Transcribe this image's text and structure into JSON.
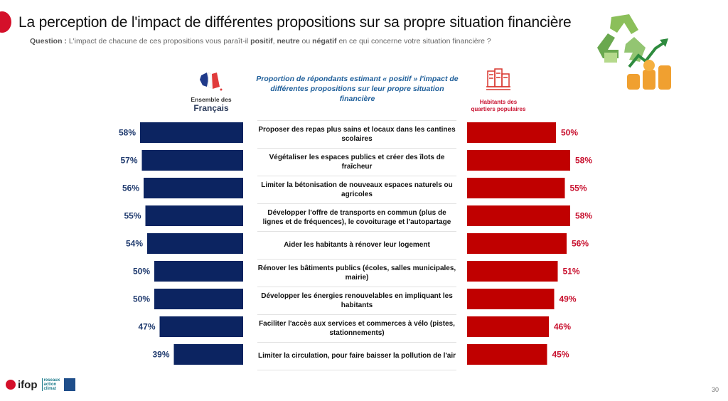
{
  "header": {
    "title": "La perception de l'impact de différentes propositions sur sa propre situation financière",
    "question_prefix": "Question :",
    "question_part1": " L'impact de chacune de ces propositions vous paraît-il ",
    "question_positif": "positif",
    "question_sep1": ", ",
    "question_neutre": "neutre",
    "question_sep2": " ou ",
    "question_negatif": "négatif",
    "question_part2": " en ce qui concerne votre situation financière ?"
  },
  "left_group": {
    "label_small": "Ensemble des",
    "label_big": "Français",
    "icon": "france-map-icon"
  },
  "right_group": {
    "label_line1": "Habitants des",
    "label_line2": "quartiers populaires",
    "icon": "buildings-icon"
  },
  "center_header": "Proportion de répondants estimant « positif » l'impact de différentes propositions sur leur propre situation financière",
  "colors": {
    "left": "#0c2461",
    "right": "#c00000",
    "left_text": "#1f3a6e",
    "right_text": "#c8102e"
  },
  "chart_data": {
    "type": "bar",
    "orientation": "horizontal-butterfly",
    "title": "Proportion de répondants estimant « positif » l'impact de différentes propositions sur leur propre situation financière",
    "categories": [
      "Proposer des repas plus sains et locaux dans les cantines scolaires",
      "Végétaliser les espaces publics et créer des îlots de fraîcheur",
      "Limiter la bétonisation de nouveaux espaces naturels ou agricoles",
      "Développer l'offre de transports en commun (plus de lignes et de fréquences), le covoiturage et l'autopartage",
      "Aider les habitants à rénover leur logement",
      "Rénover les bâtiments publics (écoles, salles municipales, mairie)",
      "Développer les énergies renouvelables en impliquant les habitants",
      "Faciliter l'accès aux services et commerces à vélo (pistes, stationnements)",
      "Limiter la circulation, pour faire baisser la pollution de l'air"
    ],
    "series": [
      {
        "name": "Ensemble des Français",
        "values": [
          58,
          57,
          56,
          55,
          54,
          50,
          50,
          47,
          39
        ]
      },
      {
        "name": "Habitants des quartiers populaires",
        "values": [
          50,
          58,
          55,
          58,
          56,
          51,
          49,
          46,
          45
        ]
      }
    ],
    "unit": "%",
    "xlim": [
      0,
      100
    ],
    "grid": false,
    "legend": "top"
  },
  "footer": {
    "logo1": "ifop",
    "logo2_l1": "reseaux",
    "logo2_l2": "action",
    "logo2_l3": "climat",
    "page_number": "30"
  }
}
